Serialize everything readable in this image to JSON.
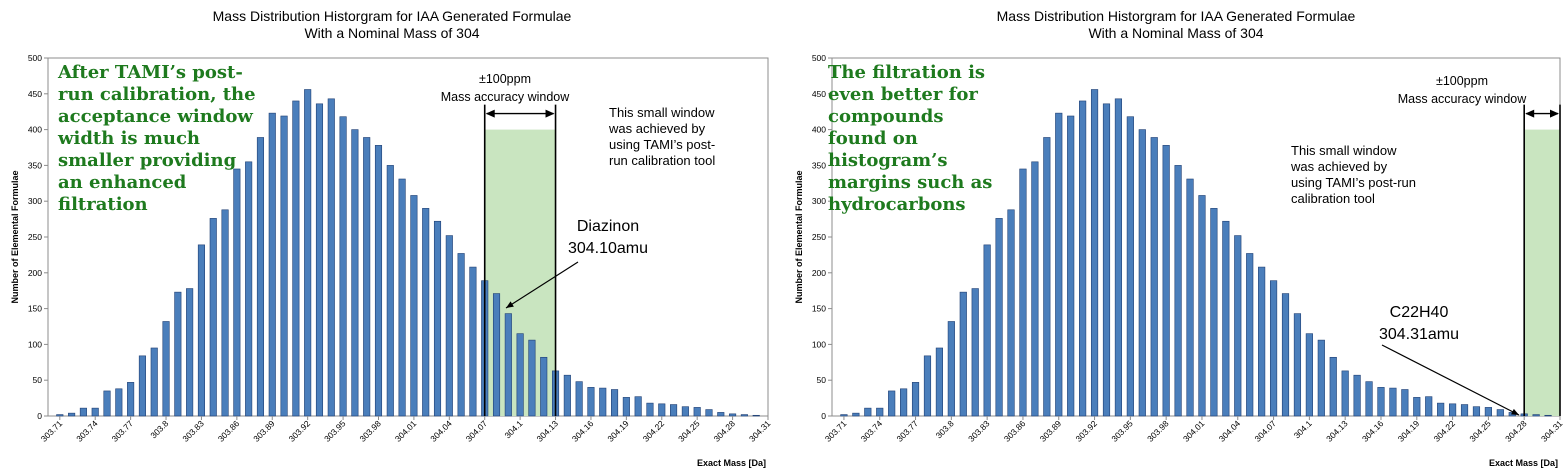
{
  "chart_data": [
    {
      "type": "bar",
      "title": "Mass Distribution Historgram for IAA Generated Formulae",
      "subtitle": "With a Nominal Mass of 304",
      "xlabel": "Exact Mass [Da]",
      "ylabel": "Number of Elemental Formulae",
      "ylim": [
        0,
        500
      ],
      "yticks": [
        "0",
        "50",
        "100",
        "150",
        "200",
        "250",
        "300",
        "350",
        "400",
        "450",
        "500"
      ],
      "xticks": [
        "303.71",
        "303.74",
        "303.77",
        "303.8",
        "303.83",
        "303.86",
        "303.89",
        "303.92",
        "303.95",
        "303.98",
        "304.01",
        "304.04",
        "304.07",
        "304.1",
        "304.13",
        "304.16",
        "304.19",
        "304.22",
        "304.25",
        "304.28",
        "304.31"
      ],
      "series": [
        {
          "values": [
            2,
            4,
            11,
            11,
            35,
            38,
            47,
            84,
            95,
            132,
            173,
            178,
            239,
            276,
            288,
            345,
            355,
            389,
            423,
            419,
            440,
            456,
            436,
            443,
            418,
            400,
            389,
            378,
            350,
            331,
            308,
            290,
            272,
            252,
            227,
            208,
            189,
            171,
            143,
            115,
            106,
            82,
            63,
            57,
            48,
            40,
            39,
            37,
            26,
            27,
            18,
            17,
            16,
            13,
            12,
            9,
            5,
            3,
            2,
            1
          ]
        }
      ],
      "window_range": [
        304.07,
        304.13
      ],
      "annotation_note": [
        "After TAMI’s post-",
        "run calibration, the",
        "acceptance window",
        "width is much",
        "smaller providing",
        "an enhanced",
        "filtration"
      ],
      "window_label": [
        "±100ppm",
        "Mass accuracy window"
      ],
      "small_note": [
        "This small window",
        "was achieved by",
        "using TAMI’s post-",
        "run calibration tool"
      ],
      "compound": [
        "Diazinon",
        "304.10amu"
      ]
    },
    {
      "type": "bar",
      "title": "Mass Distribution Historgram for IAA Generated Formulae",
      "subtitle": "With a Nominal Mass of 304",
      "xlabel": "Exact Mass [Da]",
      "ylabel": "Number of Elemental Formulae",
      "ylim": [
        0,
        500
      ],
      "yticks": [
        "0",
        "50",
        "100",
        "150",
        "200",
        "250",
        "300",
        "350",
        "400",
        "450",
        "500"
      ],
      "xticks": [
        "303.71",
        "303.74",
        "303.77",
        "303.8",
        "303.83",
        "303.86",
        "303.89",
        "303.92",
        "303.95",
        "303.98",
        "304.01",
        "304.04",
        "304.07",
        "304.1",
        "304.13",
        "304.16",
        "304.19",
        "304.22",
        "304.25",
        "304.28",
        "304.31"
      ],
      "series": [
        {
          "values": [
            2,
            4,
            11,
            11,
            35,
            38,
            47,
            84,
            95,
            132,
            173,
            178,
            239,
            276,
            288,
            345,
            355,
            389,
            423,
            419,
            440,
            456,
            436,
            443,
            418,
            400,
            389,
            378,
            350,
            331,
            308,
            290,
            272,
            252,
            227,
            208,
            189,
            171,
            143,
            115,
            106,
            82,
            63,
            57,
            48,
            40,
            39,
            37,
            26,
            27,
            18,
            17,
            16,
            13,
            12,
            9,
            5,
            3,
            2,
            1
          ]
        }
      ],
      "window_range": [
        304.28,
        304.34
      ],
      "annotation_note": [
        "The filtration is",
        "even better for",
        "compounds",
        "found on",
        "histogram’s",
        "margins such as",
        "hydrocarbons"
      ],
      "window_label": [
        "±100ppm",
        "Mass accuracy window"
      ],
      "small_note": [
        "This small window",
        "was achieved by",
        "using TAMI’s post-run",
        "calibration tool"
      ],
      "compound": [
        "C22H40",
        "304.31amu"
      ]
    }
  ],
  "colors": {
    "bar_fill": "#4a7ebb",
    "bar_stroke": "#1f3f73",
    "window_fill": "#c9e5c0",
    "note_text": "#1e7a1e"
  }
}
